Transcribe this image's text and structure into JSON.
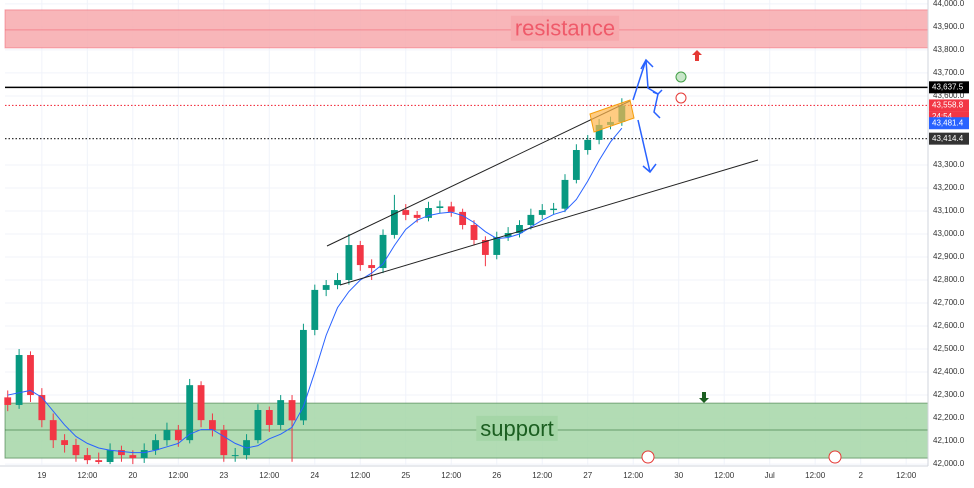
{
  "chart_data": {
    "type": "candlestick",
    "xlim": [
      -0.81,
      19.48
    ],
    "ylim": [
      41996,
      44017
    ],
    "grid": true,
    "up_color": "#089981",
    "down_color": "#f23645",
    "xticks": [
      {
        "value": 0,
        "label": "19"
      },
      {
        "value": 1,
        "label": "12:00"
      },
      {
        "value": 2,
        "label": "20"
      },
      {
        "value": 3,
        "label": "12:00"
      },
      {
        "value": 4,
        "label": "23"
      },
      {
        "value": 5,
        "label": "12:00"
      },
      {
        "value": 6,
        "label": "24"
      },
      {
        "value": 7,
        "label": "12:00"
      },
      {
        "value": 8,
        "label": "25"
      },
      {
        "value": 9,
        "label": "12:00"
      },
      {
        "value": 10,
        "label": "26"
      },
      {
        "value": 11,
        "label": "12:00"
      },
      {
        "value": 12,
        "label": "27"
      },
      {
        "value": 13,
        "label": "12:00"
      },
      {
        "value": 14,
        "label": "30"
      },
      {
        "value": 15,
        "label": "12:00"
      },
      {
        "value": 16,
        "label": "Jul"
      },
      {
        "value": 17,
        "label": "12:00"
      },
      {
        "value": 18,
        "label": "2"
      },
      {
        "value": 19,
        "label": "12:00"
      }
    ],
    "yticks": [
      {
        "value": 42000,
        "label": "42,000.0"
      },
      {
        "value": 42100,
        "label": "42,100.0"
      },
      {
        "value": 42200,
        "label": "42,200.0"
      },
      {
        "value": 42300,
        "label": "42,300.0"
      },
      {
        "value": 42400,
        "label": "42,400.0"
      },
      {
        "value": 42500,
        "label": "42,500.0"
      },
      {
        "value": 42600,
        "label": "42,600.0"
      },
      {
        "value": 42700,
        "label": "42,700.0"
      },
      {
        "value": 42800,
        "label": "42,800.0"
      },
      {
        "value": 42900,
        "label": "42,900.0"
      },
      {
        "value": 43000,
        "label": "43,000.0"
      },
      {
        "value": 43100,
        "label": "43,100.0"
      },
      {
        "value": 43200,
        "label": "43,200.0"
      },
      {
        "value": 43300,
        "label": "43,300.0"
      },
      {
        "value": 43600,
        "label": "43,600.0"
      },
      {
        "value": 43700,
        "label": "43,700.0"
      },
      {
        "value": 43800,
        "label": "43,800.0"
      },
      {
        "value": 43900,
        "label": "43,900.0"
      },
      {
        "value": 44000,
        "label": "44,000.0"
      }
    ],
    "zones": [
      {
        "label": "resistance",
        "range": [
          43809,
          43974
        ],
        "mid": 43887,
        "color": "#f7a9ad",
        "text_color": "#ef5a6a"
      },
      {
        "label": "support",
        "range": [
          42026,
          42265
        ],
        "mid": 42148,
        "color": "#a5d6a7",
        "text_color": "#1b5e20"
      }
    ],
    "price_lines": [
      {
        "value": 43637.5,
        "label": "43,637.5",
        "style": "solid",
        "color": "#000000"
      },
      {
        "value": 43558.8,
        "label": "43,558.8",
        "style": "dotted",
        "color": "#f23645"
      },
      {
        "value": 43481.4,
        "label": "43,481.4",
        "style": "none",
        "color": "#2962ff"
      },
      {
        "value": 43414.4,
        "label": "43,414.4",
        "style": "dotted",
        "color": "#333333"
      }
    ],
    "countdown": "24:54",
    "ma_color": "#2962ff",
    "x": [
      -0.75,
      -0.5,
      -0.25,
      0,
      0.25,
      0.5,
      0.75,
      1,
      1.25,
      1.5,
      1.75,
      2,
      2.25,
      2.5,
      2.75,
      3,
      3.25,
      3.5,
      3.75,
      4,
      4.25,
      4.5,
      4.75,
      5,
      5.25,
      5.5,
      5.75,
      6,
      6.25,
      6.5,
      6.75,
      7,
      7.25,
      7.5,
      7.75,
      8,
      8.25,
      8.5,
      8.75,
      9,
      9.25,
      9.5,
      9.75,
      10,
      10.25,
      10.5,
      10.75,
      11,
      11.25,
      11.5,
      11.75,
      12,
      12.25,
      12.5,
      12.75
    ],
    "open": [
      42290,
      42257,
      42474,
      42300,
      42191,
      42104,
      42083,
      42039,
      42017,
      42009,
      42061,
      42039,
      42026,
      42061,
      42104,
      42148,
      42104,
      42343,
      42191,
      42148,
      42039,
      42039,
      42104,
      42235,
      42170,
      42278,
      42190,
      42583,
      42757,
      42778,
      42800,
      42952,
      42865,
      42852,
      42996,
      43104,
      43083,
      43070,
      43113,
      43120,
      43096,
      43039,
      42974,
      42909,
      42987,
      43004,
      43039,
      43083,
      43104,
      43110,
      43235,
      43365,
      43409,
      43474,
      43487
    ],
    "high": [
      42320,
      42500,
      42490,
      42330,
      42220,
      42130,
      42110,
      42070,
      42050,
      42090,
      42080,
      42060,
      42090,
      42130,
      42180,
      42170,
      42370,
      42360,
      42220,
      42170,
      42070,
      42130,
      42260,
      42250,
      42300,
      42300,
      42610,
      42780,
      42800,
      42830,
      43000,
      42970,
      42890,
      43020,
      43170,
      43130,
      43100,
      43140,
      43145,
      43140,
      43110,
      43060,
      42990,
      43010,
      43030,
      43060,
      43110,
      43130,
      43135,
      43260,
      43390,
      43430,
      43500,
      43510,
      43590
    ],
    "low": [
      42230,
      42240,
      42270,
      42160,
      42070,
      42050,
      42010,
      42000,
      42000,
      42000,
      42010,
      42000,
      42005,
      42040,
      42080,
      42075,
      42090,
      42160,
      42120,
      42010,
      42010,
      42020,
      42090,
      42140,
      42150,
      42010,
      42170,
      42560,
      42730,
      42760,
      42780,
      42840,
      42800,
      42830,
      42980,
      43060,
      43050,
      43055,
      43090,
      43075,
      43020,
      42950,
      42860,
      42890,
      42970,
      42985,
      43020,
      43065,
      43085,
      43095,
      43220,
      43345,
      43390,
      43455,
      43470
    ],
    "close": [
      42257,
      42474,
      42300,
      42191,
      42104,
      42083,
      42039,
      42017,
      42009,
      42061,
      42039,
      42026,
      42061,
      42104,
      42148,
      42104,
      42343,
      42191,
      42148,
      42039,
      42039,
      42104,
      42235,
      42170,
      42278,
      42190,
      42583,
      42757,
      42778,
      42800,
      42952,
      42865,
      42852,
      42996,
      43104,
      43083,
      43070,
      43113,
      43120,
      43096,
      43039,
      42974,
      42909,
      42987,
      43004,
      43039,
      43083,
      43104,
      43110,
      43235,
      43365,
      43409,
      43474,
      43487,
      43558.8
    ],
    "ma": [
      42300,
      42310,
      42320,
      42290,
      42230,
      42170,
      42120,
      42090,
      42070,
      42060,
      42055,
      42050,
      42050,
      42060,
      42075,
      42090,
      42130,
      42150,
      42150,
      42120,
      42090,
      42070,
      42080,
      42110,
      42130,
      42160,
      42250,
      42400,
      42560,
      42680,
      42750,
      42800,
      42830,
      42870,
      42950,
      43020,
      43060,
      43080,
      43090,
      43095,
      43080,
      43050,
      43010,
      42980,
      42985,
      43000,
      43030,
      43060,
      43085,
      43100,
      43150,
      43230,
      43320,
      43400,
      43460
    ]
  }
}
